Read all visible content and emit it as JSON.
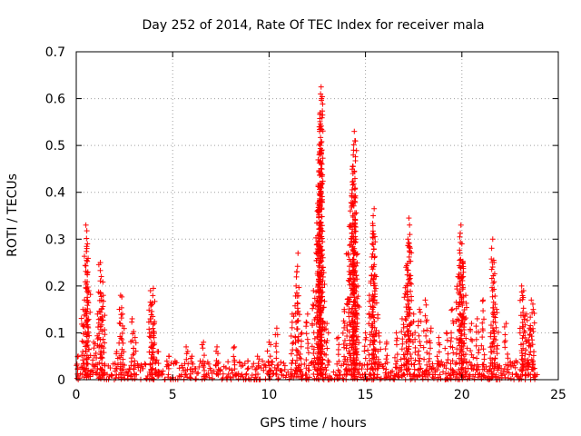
{
  "chart_data": {
    "type": "scatter",
    "title": "Day 252 of 2014, Rate Of TEC Index for receiver mala",
    "xlabel": "GPS time / hours",
    "ylabel": "ROTI / TECUs",
    "xlim": [
      0,
      25
    ],
    "ylim": [
      0,
      0.7
    ],
    "xticks": [
      "0",
      "5",
      "10",
      "15",
      "20",
      "25"
    ],
    "yticks": [
      "0",
      "0.1",
      "0.2",
      "0.3",
      "0.4",
      "0.5",
      "0.6",
      "0.7"
    ],
    "grid": true,
    "marker": "+",
    "color": "#ff0000",
    "series": [
      {
        "name": "ROTI",
        "baseline_range": [
          0,
          0.04
        ],
        "peaks": [
          {
            "x": 0.1,
            "y": 0.05
          },
          {
            "x": 0.35,
            "y": 0.15
          },
          {
            "x": 0.5,
            "y": 0.33
          },
          {
            "x": 0.55,
            "y": 0.28
          },
          {
            "x": 0.6,
            "y": 0.23
          },
          {
            "x": 0.65,
            "y": 0.19
          },
          {
            "x": 0.9,
            "y": 0.08
          },
          {
            "x": 1.1,
            "y": 0.14
          },
          {
            "x": 1.25,
            "y": 0.25
          },
          {
            "x": 1.3,
            "y": 0.22
          },
          {
            "x": 1.4,
            "y": 0.18
          },
          {
            "x": 2.1,
            "y": 0.06
          },
          {
            "x": 2.3,
            "y": 0.18
          },
          {
            "x": 2.4,
            "y": 0.14
          },
          {
            "x": 2.9,
            "y": 0.13
          },
          {
            "x": 3.05,
            "y": 0.09
          },
          {
            "x": 3.85,
            "y": 0.19
          },
          {
            "x": 3.9,
            "y": 0.16
          },
          {
            "x": 4.0,
            "y": 0.195
          },
          {
            "x": 4.05,
            "y": 0.12
          },
          {
            "x": 4.2,
            "y": 0.06
          },
          {
            "x": 4.8,
            "y": 0.05
          },
          {
            "x": 5.7,
            "y": 0.07
          },
          {
            "x": 6.0,
            "y": 0.05
          },
          {
            "x": 6.6,
            "y": 0.08
          },
          {
            "x": 7.3,
            "y": 0.07
          },
          {
            "x": 8.2,
            "y": 0.07
          },
          {
            "x": 8.9,
            "y": 0.04
          },
          {
            "x": 9.4,
            "y": 0.05
          },
          {
            "x": 10.0,
            "y": 0.08
          },
          {
            "x": 10.4,
            "y": 0.11
          },
          {
            "x": 11.2,
            "y": 0.14
          },
          {
            "x": 11.4,
            "y": 0.2
          },
          {
            "x": 11.5,
            "y": 0.27
          },
          {
            "x": 11.7,
            "y": 0.1
          },
          {
            "x": 12.0,
            "y": 0.14
          },
          {
            "x": 12.3,
            "y": 0.19
          },
          {
            "x": 12.5,
            "y": 0.36
          },
          {
            "x": 12.55,
            "y": 0.415
          },
          {
            "x": 12.6,
            "y": 0.48
          },
          {
            "x": 12.62,
            "y": 0.53
          },
          {
            "x": 12.65,
            "y": 0.57
          },
          {
            "x": 12.67,
            "y": 0.61
          },
          {
            "x": 12.7,
            "y": 0.625
          },
          {
            "x": 12.72,
            "y": 0.6
          },
          {
            "x": 12.8,
            "y": 0.24
          },
          {
            "x": 13.0,
            "y": 0.12
          },
          {
            "x": 13.6,
            "y": 0.09
          },
          {
            "x": 13.9,
            "y": 0.15
          },
          {
            "x": 14.1,
            "y": 0.27
          },
          {
            "x": 14.2,
            "y": 0.33
          },
          {
            "x": 14.3,
            "y": 0.39
          },
          {
            "x": 14.35,
            "y": 0.44
          },
          {
            "x": 14.38,
            "y": 0.49
          },
          {
            "x": 14.42,
            "y": 0.53
          },
          {
            "x": 14.45,
            "y": 0.51
          },
          {
            "x": 14.5,
            "y": 0.3
          },
          {
            "x": 14.6,
            "y": 0.2
          },
          {
            "x": 15.0,
            "y": 0.1
          },
          {
            "x": 15.2,
            "y": 0.18
          },
          {
            "x": 15.35,
            "y": 0.29
          },
          {
            "x": 15.4,
            "y": 0.35
          },
          {
            "x": 15.45,
            "y": 0.365
          },
          {
            "x": 15.55,
            "y": 0.22
          },
          {
            "x": 15.7,
            "y": 0.1
          },
          {
            "x": 16.1,
            "y": 0.08
          },
          {
            "x": 16.6,
            "y": 0.1
          },
          {
            "x": 16.9,
            "y": 0.13
          },
          {
            "x": 17.1,
            "y": 0.24
          },
          {
            "x": 17.2,
            "y": 0.3
          },
          {
            "x": 17.25,
            "y": 0.345
          },
          {
            "x": 17.3,
            "y": 0.31
          },
          {
            "x": 17.5,
            "y": 0.14
          },
          {
            "x": 17.8,
            "y": 0.15
          },
          {
            "x": 18.1,
            "y": 0.17
          },
          {
            "x": 18.4,
            "y": 0.11
          },
          {
            "x": 18.8,
            "y": 0.09
          },
          {
            "x": 19.2,
            "y": 0.1
          },
          {
            "x": 19.5,
            "y": 0.15
          },
          {
            "x": 19.8,
            "y": 0.22
          },
          {
            "x": 19.9,
            "y": 0.27
          },
          {
            "x": 19.95,
            "y": 0.33
          },
          {
            "x": 20.0,
            "y": 0.29
          },
          {
            "x": 20.05,
            "y": 0.25
          },
          {
            "x": 20.2,
            "y": 0.18
          },
          {
            "x": 20.5,
            "y": 0.12
          },
          {
            "x": 20.8,
            "y": 0.13
          },
          {
            "x": 21.1,
            "y": 0.17
          },
          {
            "x": 21.5,
            "y": 0.1
          },
          {
            "x": 21.6,
            "y": 0.3
          },
          {
            "x": 21.65,
            "y": 0.255
          },
          {
            "x": 21.8,
            "y": 0.15
          },
          {
            "x": 22.3,
            "y": 0.12
          },
          {
            "x": 22.8,
            "y": 0.04
          },
          {
            "x": 23.1,
            "y": 0.2
          },
          {
            "x": 23.2,
            "y": 0.19
          },
          {
            "x": 23.35,
            "y": 0.14
          },
          {
            "x": 23.5,
            "y": 0.11
          },
          {
            "x": 23.6,
            "y": 0.17
          },
          {
            "x": 23.7,
            "y": 0.15
          },
          {
            "x": 23.8,
            "y": 0.01
          }
        ]
      }
    ]
  }
}
